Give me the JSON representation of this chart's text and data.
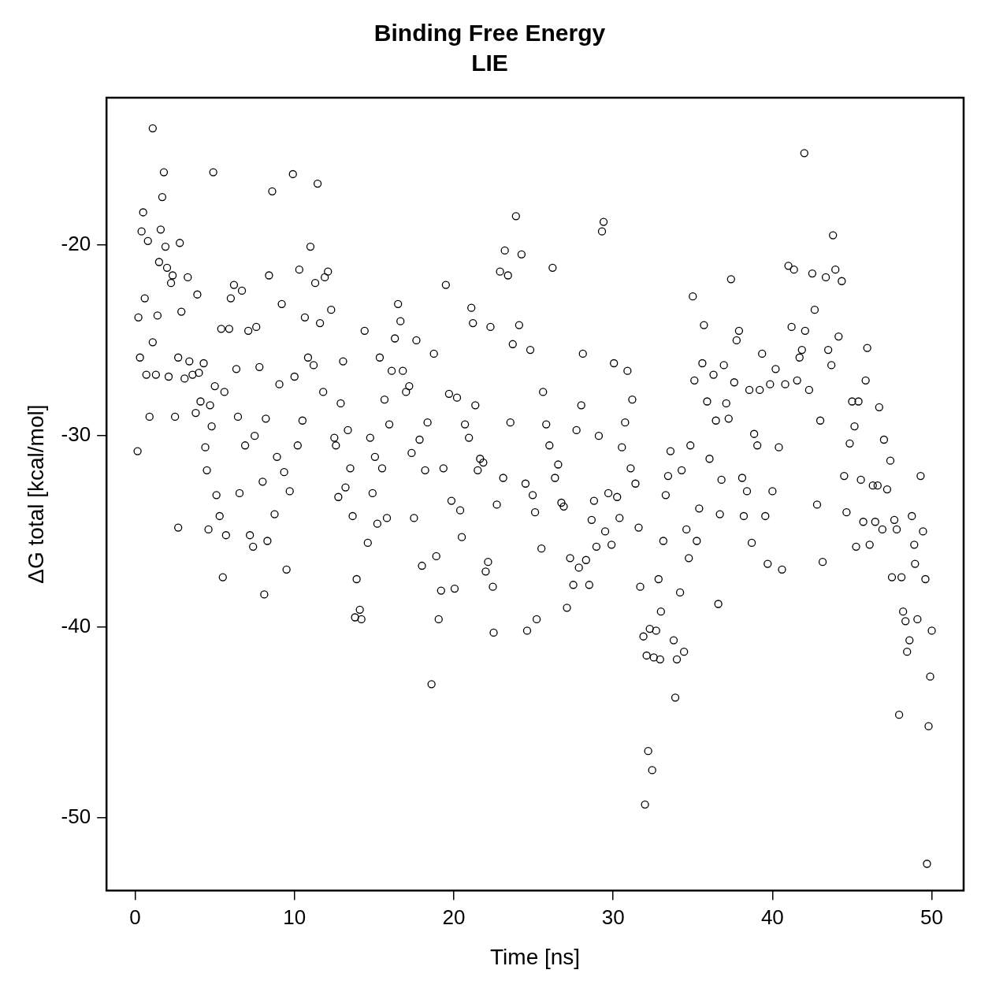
{
  "chart_data": {
    "type": "scatter",
    "title": "Binding Free Energy",
    "subtitle": "LIE",
    "xlabel": "Time [ns]",
    "ylabel": "ΔG total [kcal/mol]",
    "xlim": [
      -1.8,
      52
    ],
    "ylim": [
      -53.8,
      -12.3
    ],
    "xticks": [
      0,
      10,
      20,
      30,
      40,
      50
    ],
    "yticks": [
      -50,
      -40,
      -30,
      -20
    ],
    "grid": false,
    "legend": false,
    "marker": "circle",
    "series": [
      {
        "color": "#000000",
        "x": [
          0.15,
          0.2,
          0.3,
          0.4,
          0.5,
          0.6,
          0.7,
          0.8,
          0.9,
          1.1,
          1.1,
          1.3,
          1.4,
          1.5,
          1.6,
          1.7,
          1.8,
          1.9,
          2.0,
          2.1,
          2.25,
          2.35,
          2.5,
          2.7,
          2.7,
          2.8,
          2.9,
          3.1,
          3.3,
          3.4,
          3.6,
          3.8,
          3.9,
          4.0,
          4.1,
          4.3,
          4.4,
          4.5,
          4.6,
          4.7,
          4.8,
          4.9,
          5.0,
          5.1,
          5.3,
          5.4,
          5.5,
          5.6,
          5.7,
          5.9,
          6.0,
          6.2,
          6.35,
          6.45,
          6.55,
          6.7,
          6.9,
          7.1,
          7.2,
          7.4,
          7.5,
          7.6,
          7.8,
          8.0,
          8.1,
          8.2,
          8.3,
          8.4,
          8.6,
          8.75,
          8.9,
          9.05,
          9.2,
          9.35,
          9.5,
          9.7,
          9.9,
          10.0,
          10.2,
          10.3,
          10.5,
          10.65,
          10.85,
          11.0,
          11.2,
          11.3,
          11.45,
          11.6,
          11.8,
          11.9,
          12.1,
          12.3,
          12.5,
          12.6,
          12.75,
          12.9,
          13.05,
          13.2,
          13.35,
          13.5,
          13.65,
          13.8,
          13.9,
          14.1,
          14.2,
          14.4,
          14.6,
          14.75,
          14.9,
          15.05,
          15.2,
          15.35,
          15.5,
          15.65,
          15.8,
          15.95,
          16.1,
          16.3,
          16.5,
          16.65,
          16.8,
          17.0,
          17.2,
          17.35,
          17.5,
          17.65,
          17.85,
          18.0,
          18.2,
          18.35,
          18.6,
          18.75,
          18.9,
          19.05,
          19.2,
          19.35,
          19.5,
          19.7,
          19.85,
          20.05,
          20.2,
          20.4,
          20.5,
          20.7,
          20.95,
          21.1,
          21.2,
          21.35,
          21.5,
          21.65,
          21.85,
          22.0,
          22.15,
          22.3,
          22.45,
          22.5,
          22.7,
          22.9,
          23.1,
          23.2,
          23.4,
          23.55,
          23.7,
          23.9,
          24.1,
          24.25,
          24.5,
          24.6,
          24.8,
          24.95,
          25.1,
          25.2,
          25.5,
          25.6,
          25.8,
          26.0,
          26.2,
          26.35,
          26.55,
          26.75,
          26.9,
          27.1,
          27.3,
          27.5,
          27.7,
          27.85,
          28.0,
          28.1,
          28.3,
          28.5,
          28.65,
          28.8,
          28.95,
          29.1,
          29.3,
          29.4,
          29.5,
          29.7,
          29.9,
          30.05,
          30.25,
          30.4,
          30.55,
          30.75,
          30.9,
          31.1,
          31.2,
          31.4,
          31.6,
          31.7,
          31.9,
          32.0,
          32.1,
          32.2,
          32.3,
          32.45,
          32.55,
          32.7,
          32.85,
          32.95,
          33.0,
          33.15,
          33.3,
          33.45,
          33.6,
          33.8,
          33.9,
          34.0,
          34.2,
          34.3,
          34.45,
          34.6,
          34.75,
          34.85,
          35.0,
          35.1,
          35.25,
          35.4,
          35.6,
          35.7,
          35.9,
          36.05,
          36.3,
          36.45,
          36.6,
          36.7,
          36.8,
          36.95,
          37.1,
          37.25,
          37.4,
          37.6,
          37.75,
          37.9,
          38.1,
          38.2,
          38.4,
          38.55,
          38.7,
          38.85,
          39.05,
          39.2,
          39.35,
          39.55,
          39.7,
          39.85,
          40.0,
          40.2,
          40.4,
          40.6,
          40.8,
          41.0,
          41.2,
          41.35,
          41.55,
          41.7,
          41.85,
          42.0,
          42.05,
          42.3,
          42.5,
          42.65,
          42.8,
          43.0,
          43.15,
          43.35,
          43.5,
          43.7,
          43.8,
          43.95,
          44.15,
          44.35,
          44.5,
          44.65,
          44.85,
          45.0,
          45.15,
          45.25,
          45.4,
          45.55,
          45.7,
          45.85,
          45.95,
          46.1,
          46.3,
          46.45,
          46.6,
          46.7,
          46.9,
          47.0,
          47.2,
          47.4,
          47.5,
          47.65,
          47.8,
          47.95,
          48.1,
          48.2,
          48.35,
          48.45,
          48.6,
          48.75,
          48.9,
          48.95,
          49.1,
          49.3,
          49.45,
          49.6,
          49.7,
          49.8,
          49.9,
          50.0
        ],
        "values": [
          -30.8,
          -23.8,
          -25.9,
          -19.3,
          -18.3,
          -22.8,
          -26.8,
          -19.8,
          -29.0,
          -25.1,
          -13.9,
          -26.8,
          -23.7,
          -20.9,
          -19.2,
          -17.5,
          -16.2,
          -20.1,
          -21.2,
          -26.9,
          -22.0,
          -21.6,
          -29.0,
          -25.9,
          -34.8,
          -19.9,
          -23.5,
          -27.0,
          -21.7,
          -26.1,
          -26.8,
          -28.8,
          -22.6,
          -26.7,
          -28.2,
          -26.2,
          -30.6,
          -31.8,
          -34.9,
          -28.4,
          -29.5,
          -16.2,
          -27.4,
          -33.1,
          -34.2,
          -24.4,
          -37.4,
          -27.7,
          -35.2,
          -24.4,
          -22.8,
          -22.1,
          -26.5,
          -29.0,
          -33.0,
          -22.4,
          -30.5,
          -24.5,
          -35.2,
          -35.8,
          -30.0,
          -24.3,
          -26.4,
          -32.4,
          -38.3,
          -29.1,
          -35.5,
          -21.6,
          -17.2,
          -34.1,
          -31.1,
          -27.3,
          -23.1,
          -31.9,
          -37.0,
          -32.9,
          -16.3,
          -26.9,
          -30.5,
          -21.3,
          -29.2,
          -23.8,
          -25.9,
          -20.1,
          -26.3,
          -22.0,
          -16.8,
          -24.1,
          -27.7,
          -21.7,
          -21.4,
          -23.4,
          -30.1,
          -30.5,
          -33.2,
          -28.3,
          -26.1,
          -32.7,
          -29.7,
          -31.7,
          -34.2,
          -39.5,
          -37.5,
          -39.1,
          -39.6,
          -24.5,
          -35.6,
          -30.1,
          -33.0,
          -31.1,
          -34.6,
          -25.9,
          -31.7,
          -28.1,
          -34.3,
          -29.4,
          -26.6,
          -24.9,
          -23.1,
          -24.0,
          -26.6,
          -27.7,
          -27.4,
          -30.9,
          -34.3,
          -25.0,
          -30.2,
          -36.8,
          -31.8,
          -29.3,
          -43.0,
          -25.7,
          -36.3,
          -39.6,
          -38.1,
          -31.7,
          -22.1,
          -27.8,
          -33.4,
          -38.0,
          -28.0,
          -33.9,
          -35.3,
          -29.4,
          -30.1,
          -23.3,
          -24.1,
          -28.4,
          -31.8,
          -31.2,
          -31.4,
          -37.1,
          -36.6,
          -24.3,
          -37.9,
          -40.3,
          -33.6,
          -21.4,
          -32.2,
          -20.3,
          -21.6,
          -29.3,
          -25.2,
          -18.5,
          -24.2,
          -20.5,
          -32.5,
          -40.2,
          -25.5,
          -33.1,
          -34.0,
          -39.6,
          -35.9,
          -27.7,
          -29.4,
          -30.5,
          -21.2,
          -32.2,
          -31.5,
          -33.5,
          -33.7,
          -39.0,
          -36.4,
          -37.8,
          -29.7,
          -36.9,
          -28.4,
          -25.7,
          -36.5,
          -37.8,
          -34.4,
          -33.4,
          -35.8,
          -30.0,
          -19.3,
          -18.8,
          -35.0,
          -33.0,
          -35.7,
          -26.2,
          -33.2,
          -34.3,
          -30.6,
          -29.3,
          -26.6,
          -31.7,
          -28.1,
          -32.5,
          -34.8,
          -37.9,
          -40.5,
          -49.3,
          -41.5,
          -46.5,
          -40.1,
          -47.5,
          -41.6,
          -40.2,
          -37.5,
          -41.7,
          -39.2,
          -35.5,
          -33.1,
          -32.1,
          -30.8,
          -40.7,
          -43.7,
          -41.7,
          -38.2,
          -31.8,
          -41.3,
          -34.9,
          -36.4,
          -30.5,
          -22.7,
          -27.1,
          -35.5,
          -33.8,
          -26.2,
          -24.2,
          -28.2,
          -31.2,
          -26.8,
          -29.2,
          -38.8,
          -34.1,
          -32.3,
          -26.3,
          -28.3,
          -29.1,
          -21.8,
          -27.2,
          -25.0,
          -24.5,
          -32.2,
          -34.2,
          -32.9,
          -27.6,
          -35.6,
          -29.9,
          -30.5,
          -27.6,
          -25.7,
          -34.2,
          -36.7,
          -27.3,
          -32.9,
          -26.5,
          -30.6,
          -37.0,
          -27.3,
          -21.1,
          -24.3,
          -21.3,
          -27.1,
          -25.9,
          -25.5,
          -15.2,
          -24.5,
          -27.6,
          -21.5,
          -23.4,
          -33.6,
          -29.2,
          -36.6,
          -21.7,
          -25.5,
          -26.3,
          -19.5,
          -21.3,
          -24.8,
          -21.9,
          -32.1,
          -34.0,
          -30.4,
          -28.2,
          -29.5,
          -35.8,
          -28.2,
          -32.3,
          -34.5,
          -27.1,
          -25.4,
          -35.7,
          -32.6,
          -34.5,
          -32.6,
          -28.5,
          -34.9,
          -30.2,
          -32.8,
          -31.3,
          -37.4,
          -34.4,
          -34.9,
          -44.6,
          -37.4,
          -39.2,
          -39.7,
          -41.3,
          -40.7,
          -34.2,
          -35.7,
          -36.7,
          -39.6,
          -32.1,
          -35.0,
          -37.5,
          -52.4,
          -45.2,
          -42.6,
          -40.2
        ]
      }
    ]
  }
}
